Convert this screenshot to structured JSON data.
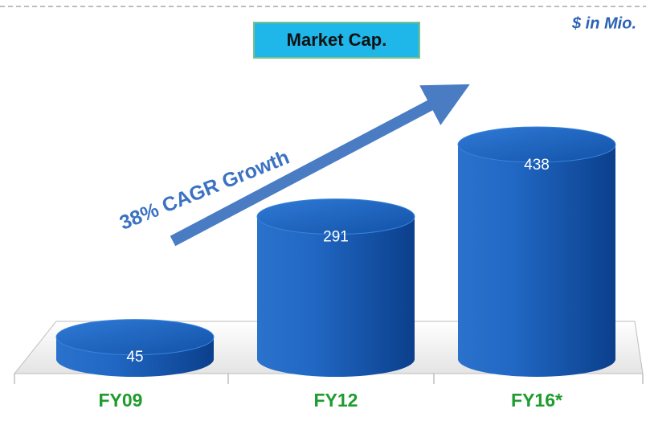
{
  "chart_data": {
    "type": "bar",
    "title": "Market Cap.",
    "unit_label": "$ in Mio.",
    "annotation": "38% CAGR Growth",
    "categories": [
      "FY09",
      "FY12",
      "FY16*"
    ],
    "values": [
      45,
      291,
      438
    ],
    "color": "#1a5fbf",
    "category_color": "#1e9c2e"
  }
}
